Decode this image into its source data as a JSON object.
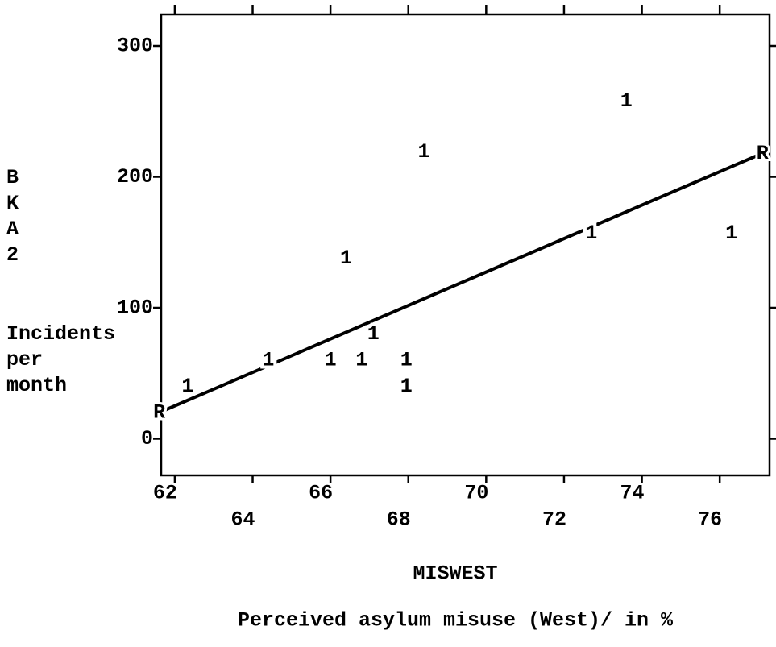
{
  "chart_data": {
    "type": "scatter",
    "x_label": "MISWEST",
    "x_label_description": "Perceived asylum misuse (West)/ in %",
    "y_label": "BKA2",
    "y_label_description": "Incidents per month",
    "marker": "1",
    "line_marker": "R",
    "x": [
      62.33,
      64.4,
      66.0,
      66.8,
      67.95,
      67.95,
      67.1,
      66.4,
      68.4,
      73.6,
      72.7,
      76.3
    ],
    "values": [
      40,
      60,
      60,
      60,
      60,
      40,
      80,
      138,
      219,
      258,
      157,
      157
    ],
    "regression_line": {
      "x": [
        61.6,
        77.1
      ],
      "values": [
        20,
        218
      ]
    },
    "xlim": [
      61.65,
      77.28
    ],
    "xticks": [
      62,
      64,
      66,
      68,
      70,
      72,
      74,
      76
    ],
    "ylim": [
      -28,
      324
    ],
    "yticks": [
      0,
      100,
      200,
      300
    ],
    "color": "#000000"
  }
}
